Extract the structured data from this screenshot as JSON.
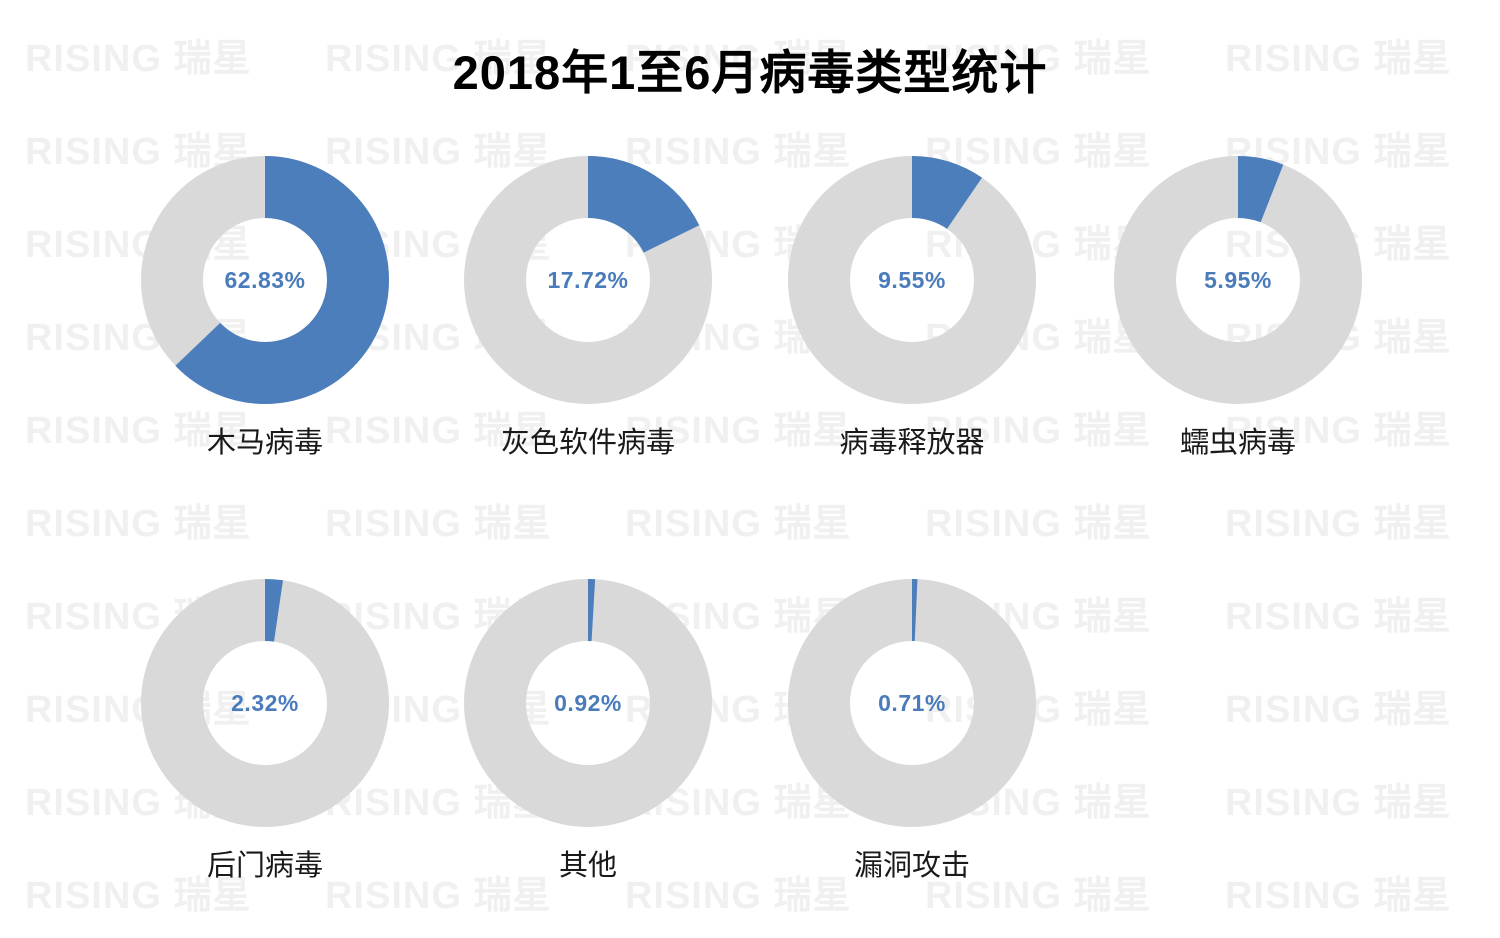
{
  "title": "2018年1至6月病毒类型统计",
  "watermark": {
    "brand_en": "RISING",
    "brand_cn": "瑞星",
    "color": "#f1f0f0"
  },
  "colors": {
    "slice": "#4c7ebb",
    "track": "#d9d9d9",
    "value_label": "#4a7bba",
    "category_label": "#1a1a1a",
    "title": "#000000",
    "background": "#ffffff"
  },
  "chart_data": {
    "type": "pie",
    "subtype": "donut-grid",
    "title": "2018年1至6月病毒类型统计",
    "categories": [
      "木马病毒",
      "灰色软件病毒",
      "病毒释放器",
      "蠕虫病毒",
      "后门病毒",
      "其他",
      "漏洞攻击"
    ],
    "values": [
      62.83,
      17.72,
      9.55,
      5.95,
      2.32,
      0.92,
      0.71
    ],
    "value_labels": [
      "62.83%",
      "17.72%",
      "9.55%",
      "5.95%",
      "2.32%",
      "0.92%",
      "0.71%"
    ],
    "unit": "%",
    "layout_hint": {
      "rows": [
        4,
        3
      ],
      "start_angle_deg": 0,
      "direction": "clockwise",
      "legend": "none",
      "grid": "off"
    },
    "slice_color": "#4c7ebb",
    "remainder_color": "#d9d9d9"
  }
}
